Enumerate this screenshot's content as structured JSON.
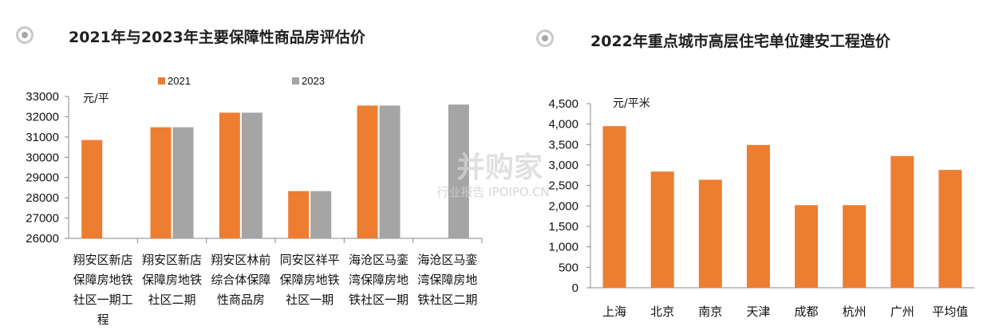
{
  "chart_data": [
    {
      "type": "bar",
      "title": "2021年与2023年主要保障性商品房评估价",
      "ylabel": "元/平",
      "ylim": [
        26000,
        33000
      ],
      "yticks": [
        "26000",
        "27000",
        "28000",
        "29000",
        "30000",
        "31000",
        "32000",
        "33000"
      ],
      "categories": [
        [
          "翔安区新店",
          "保障房地铁",
          "社区一期工",
          "程"
        ],
        [
          "翔安区新店",
          "保障房地铁",
          "社区二期"
        ],
        [
          "翔安区林前",
          "综合体保障",
          "性商品房"
        ],
        [
          "同安区祥平",
          "保障房地铁",
          "社区一期"
        ],
        [
          "海沧区马銮",
          "湾保障房地",
          "铁社区一期"
        ],
        [
          "海沧区马銮",
          "湾保障房地",
          "铁社区二期"
        ]
      ],
      "series": [
        {
          "name": "2021",
          "color": "#ed7d31",
          "values": [
            30850,
            31480,
            32200,
            28330,
            32550,
            null
          ]
        },
        {
          "name": "2023",
          "color": "#a5a5a5",
          "values": [
            null,
            31480,
            32200,
            28330,
            32550,
            32600
          ]
        }
      ],
      "grid": false,
      "legend": "top"
    },
    {
      "type": "bar",
      "title": "2022年重点城市高层住宅单位建安工程造价",
      "ylabel": "元/平米",
      "ylim": [
        0,
        4500
      ],
      "yticks": [
        "0",
        "500",
        "1,000",
        "1,500",
        "2,000",
        "2,500",
        "3,000",
        "3,500",
        "4,000",
        "4,500"
      ],
      "categories": [
        "上海",
        "北京",
        "南京",
        "天津",
        "成都",
        "杭州",
        "广州",
        "平均值"
      ],
      "series": [
        {
          "name": "",
          "color": "#ed7d31",
          "values": [
            3950,
            2840,
            2640,
            3490,
            2020,
            2020,
            3220,
            2880
          ]
        }
      ],
      "grid": false,
      "legend": "none"
    }
  ],
  "watermark": {
    "main": "并购家",
    "sub": "行业报告 IPOIPO.CN"
  }
}
